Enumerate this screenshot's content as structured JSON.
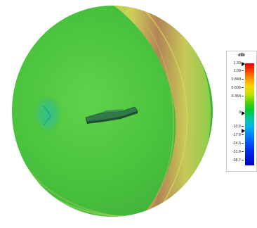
{
  "colorbar": {
    "unit": "dBi",
    "ticks": [
      "1.33",
      "1.09",
      "0.849",
      "0.606",
      "0.364",
      "0",
      "-10.5",
      "-17.6",
      "-24.6",
      "-31.6",
      "-38.7"
    ],
    "markers": [
      "max-level-marker",
      "zero-level-marker",
      "min-level-marker"
    ]
  },
  "scene": {
    "object": "3D radiation pattern",
    "object_icon": "antenna-model"
  },
  "colors": {
    "surface_green": "#4fc23f",
    "band_red": "#b87a55",
    "band_yellow": "#c7d64e",
    "antenna": "#2e7d45"
  }
}
